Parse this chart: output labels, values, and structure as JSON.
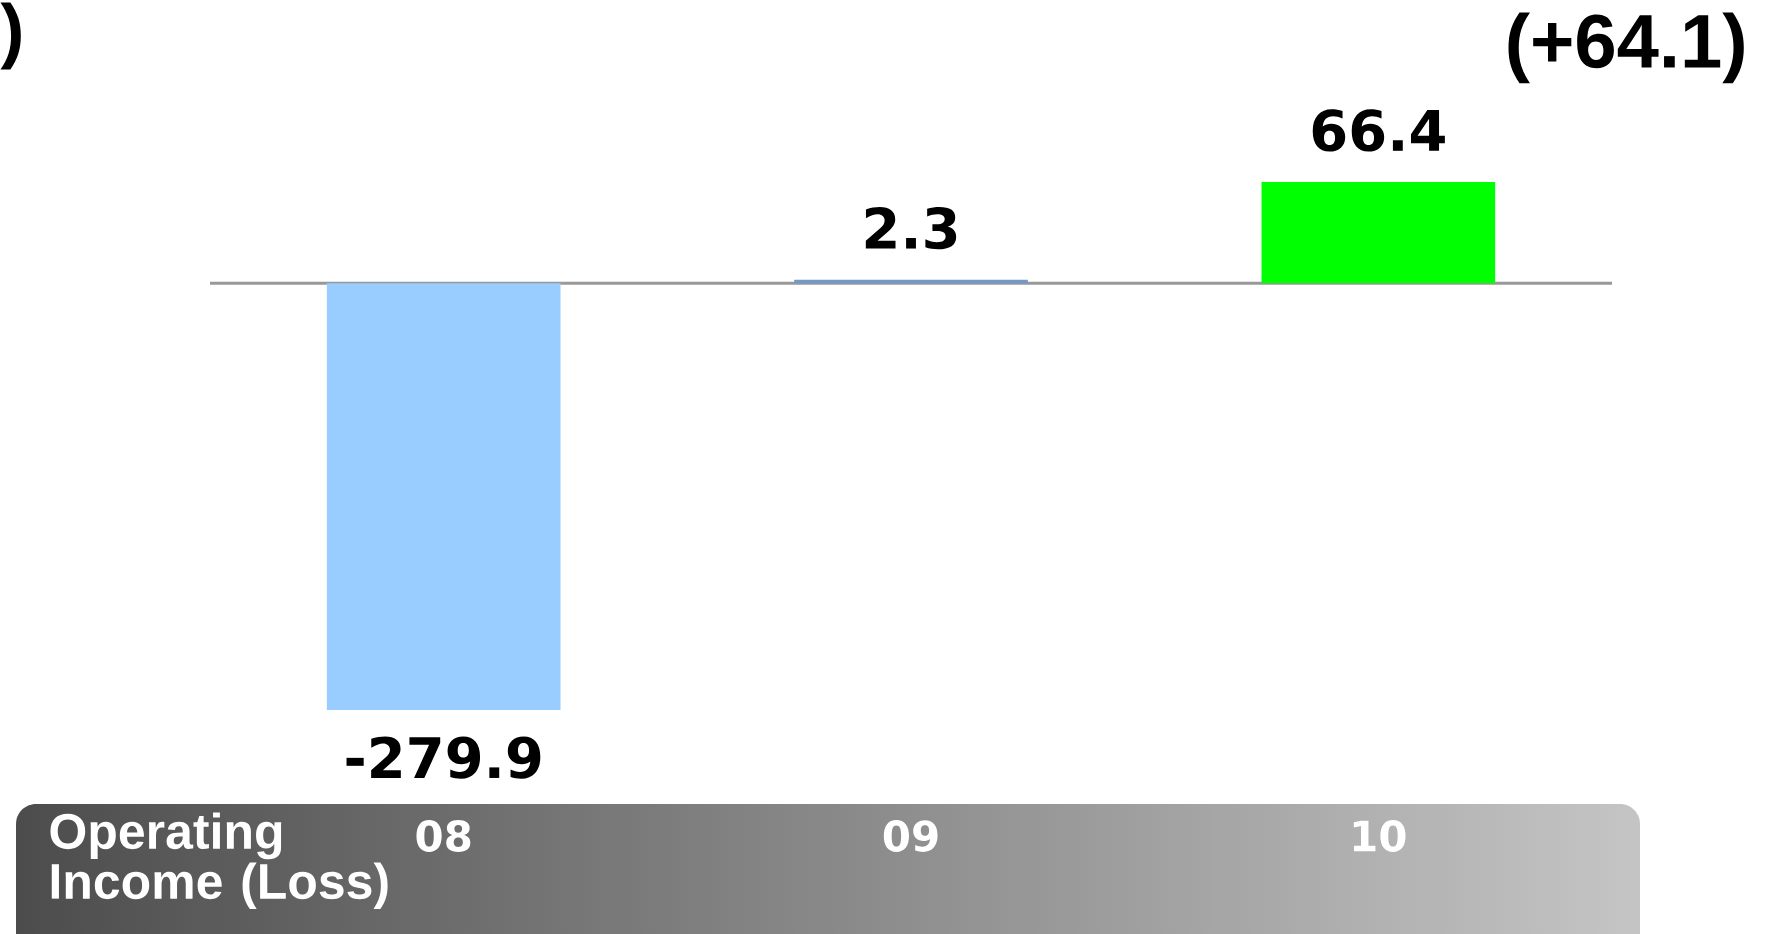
{
  "chart_data": {
    "type": "bar",
    "title": "Operating Income (Loss)",
    "categories": [
      "08",
      "09",
      "10"
    ],
    "values": [
      -279.9,
      2.3,
      66.4
    ],
    "colors": [
      "#99ccff",
      "#7399c6",
      "#00ff00"
    ],
    "data_labels": true,
    "annotations": [
      ")",
      "(+64.1)"
    ]
  }
}
